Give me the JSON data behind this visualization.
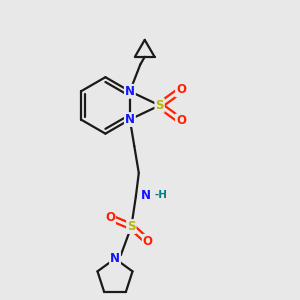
{
  "bg_color": "#e8e8e8",
  "bond_color": "#1a1a1a",
  "N_color": "#1414ff",
  "S_color": "#b8b800",
  "O_color": "#ff2000",
  "H_color": "#008080",
  "line_width": 1.6,
  "figsize": [
    3.0,
    3.0
  ],
  "dpi": 100,
  "xlim": [
    0,
    10
  ],
  "ylim": [
    0,
    10
  ]
}
